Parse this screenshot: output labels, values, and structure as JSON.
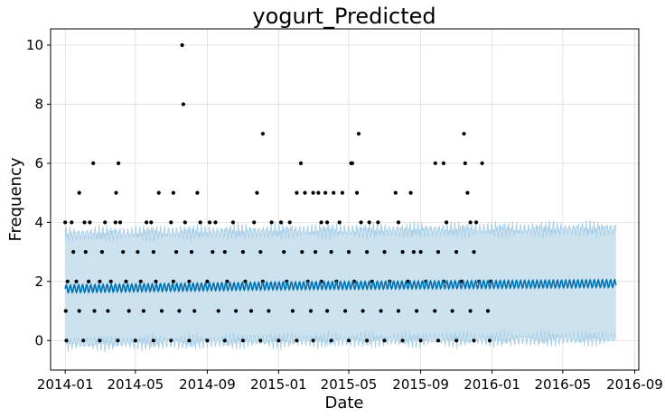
{
  "chart_data": {
    "type": "scatter",
    "title": "yogurt_Predicted",
    "xlabel": "Date",
    "ylabel": "Frequency",
    "xlim": [
      "2013-12-07",
      "2016-09-08"
    ],
    "ylim": [
      -1.0,
      10.55
    ],
    "grid": true,
    "x_ticks": [
      "2014-01",
      "2014-05",
      "2014-09",
      "2015-01",
      "2015-05",
      "2015-09",
      "2016-01",
      "2016-05",
      "2016-09"
    ],
    "y_ticks": [
      0,
      2,
      4,
      6,
      8,
      10
    ],
    "history_range": [
      "2014-01-01",
      "2015-12-31"
    ],
    "forecast_range": [
      "2014-01-01",
      "2016-07-31"
    ],
    "colors": {
      "observed": "#000000",
      "forecast_line": "#0072B2",
      "uncertainty_band": "#CCE2EF",
      "uncertainty_edge": "#A6CDE6",
      "grid": "#dddddd"
    },
    "series": [
      {
        "kind": "observed",
        "points": [
          [
            "2014-07-20",
            10
          ],
          [
            "2014-07-22",
            8
          ],
          [
            "2014-02-18",
            6
          ],
          [
            "2014-04-02",
            6
          ],
          [
            "2014-12-05",
            7
          ],
          [
            "2015-02-08",
            6
          ],
          [
            "2015-05-05",
            6
          ],
          [
            "2015-05-07",
            6
          ],
          [
            "2015-05-18",
            7
          ],
          [
            "2015-09-26",
            6
          ],
          [
            "2015-10-10",
            6
          ],
          [
            "2015-11-14",
            7
          ],
          [
            "2015-11-16",
            6
          ],
          [
            "2015-12-15",
            6
          ],
          [
            "2014-01-25",
            5
          ],
          [
            "2014-03-29",
            5
          ],
          [
            "2014-06-10",
            5
          ],
          [
            "2014-07-05",
            5
          ],
          [
            "2014-08-15",
            5
          ],
          [
            "2014-11-25",
            5
          ],
          [
            "2015-02-01",
            5
          ],
          [
            "2015-02-15",
            5
          ],
          [
            "2015-03-01",
            5
          ],
          [
            "2015-03-10",
            5
          ],
          [
            "2015-03-22",
            5
          ],
          [
            "2015-04-05",
            5
          ],
          [
            "2015-04-20",
            5
          ],
          [
            "2015-05-15",
            5
          ],
          [
            "2015-07-20",
            5
          ],
          [
            "2015-08-15",
            5
          ],
          [
            "2015-11-20",
            5
          ],
          [
            "2014-01-01",
            4
          ],
          [
            "2014-01-12",
            4
          ],
          [
            "2014-02-03",
            4
          ],
          [
            "2014-02-12",
            4
          ],
          [
            "2014-03-10",
            4
          ],
          [
            "2014-03-28",
            4
          ],
          [
            "2014-04-05",
            4
          ],
          [
            "2014-05-20",
            4
          ],
          [
            "2014-05-28",
            4
          ],
          [
            "2014-07-01",
            4
          ],
          [
            "2014-07-25",
            4
          ],
          [
            "2014-08-20",
            4
          ],
          [
            "2014-09-05",
            4
          ],
          [
            "2014-09-15",
            4
          ],
          [
            "2014-10-15",
            4
          ],
          [
            "2014-11-20",
            4
          ],
          [
            "2014-12-20",
            4
          ],
          [
            "2015-01-05",
            4
          ],
          [
            "2015-01-20",
            4
          ],
          [
            "2015-03-15",
            4
          ],
          [
            "2015-03-25",
            4
          ],
          [
            "2015-04-15",
            4
          ],
          [
            "2015-05-22",
            4
          ],
          [
            "2015-06-05",
            4
          ],
          [
            "2015-06-20",
            4
          ],
          [
            "2015-07-25",
            4
          ],
          [
            "2015-10-15",
            4
          ],
          [
            "2015-11-25",
            4
          ],
          [
            "2015-12-05",
            4
          ],
          [
            "2014-01-15",
            3
          ],
          [
            "2014-02-05",
            3
          ],
          [
            "2014-03-05",
            3
          ],
          [
            "2014-04-10",
            3
          ],
          [
            "2014-05-05",
            3
          ],
          [
            "2014-06-01",
            3
          ],
          [
            "2014-07-10",
            3
          ],
          [
            "2014-08-05",
            3
          ],
          [
            "2014-09-10",
            3
          ],
          [
            "2014-10-01",
            3
          ],
          [
            "2014-11-01",
            3
          ],
          [
            "2014-12-01",
            3
          ],
          [
            "2015-01-10",
            3
          ],
          [
            "2015-02-10",
            3
          ],
          [
            "2015-03-05",
            3
          ],
          [
            "2015-04-01",
            3
          ],
          [
            "2015-05-01",
            3
          ],
          [
            "2015-06-01",
            3
          ],
          [
            "2015-07-01",
            3
          ],
          [
            "2015-08-01",
            3
          ],
          [
            "2015-08-20",
            3
          ],
          [
            "2015-09-01",
            3
          ],
          [
            "2015-10-01",
            3
          ],
          [
            "2015-11-01",
            3
          ],
          [
            "2015-12-01",
            3
          ],
          [
            "2014-01-05",
            2
          ],
          [
            "2014-01-20",
            2
          ],
          [
            "2014-02-10",
            2
          ],
          [
            "2014-03-01",
            2
          ],
          [
            "2014-03-20",
            2
          ],
          [
            "2014-04-15",
            2
          ],
          [
            "2014-05-10",
            2
          ],
          [
            "2014-06-05",
            2
          ],
          [
            "2014-07-05",
            2
          ],
          [
            "2014-08-01",
            2
          ],
          [
            "2014-09-01",
            2
          ],
          [
            "2014-10-05",
            2
          ],
          [
            "2014-11-05",
            2
          ],
          [
            "2014-12-05",
            2
          ],
          [
            "2015-01-15",
            2
          ],
          [
            "2015-02-20",
            2
          ],
          [
            "2015-03-15",
            2
          ],
          [
            "2015-04-10",
            2
          ],
          [
            "2015-05-10",
            2
          ],
          [
            "2015-06-10",
            2
          ],
          [
            "2015-07-10",
            2
          ],
          [
            "2015-08-10",
            2
          ],
          [
            "2015-09-10",
            2
          ],
          [
            "2015-10-10",
            2
          ],
          [
            "2015-11-10",
            2
          ],
          [
            "2015-12-10",
            2
          ],
          [
            "2015-12-30",
            2
          ],
          [
            "2014-01-02",
            1
          ],
          [
            "2014-01-25",
            1
          ],
          [
            "2014-02-20",
            1
          ],
          [
            "2014-03-15",
            1
          ],
          [
            "2014-04-20",
            1
          ],
          [
            "2014-05-15",
            1
          ],
          [
            "2014-06-15",
            1
          ],
          [
            "2014-07-15",
            1
          ],
          [
            "2014-08-10",
            1
          ],
          [
            "2014-09-20",
            1
          ],
          [
            "2014-10-20",
            1
          ],
          [
            "2014-11-15",
            1
          ],
          [
            "2014-12-15",
            1
          ],
          [
            "2015-01-25",
            1
          ],
          [
            "2015-02-25",
            1
          ],
          [
            "2015-03-25",
            1
          ],
          [
            "2015-04-25",
            1
          ],
          [
            "2015-05-25",
            1
          ],
          [
            "2015-06-25",
            1
          ],
          [
            "2015-07-25",
            1
          ],
          [
            "2015-08-25",
            1
          ],
          [
            "2015-09-25",
            1
          ],
          [
            "2015-10-25",
            1
          ],
          [
            "2015-11-25",
            1
          ],
          [
            "2015-12-25",
            1
          ],
          [
            "2014-01-03",
            0
          ],
          [
            "2014-02-01",
            0
          ],
          [
            "2014-03-01",
            0
          ],
          [
            "2014-04-01",
            0
          ],
          [
            "2014-05-01",
            0
          ],
          [
            "2014-06-01",
            0
          ],
          [
            "2014-07-01",
            0
          ],
          [
            "2014-08-01",
            0
          ],
          [
            "2014-09-01",
            0
          ],
          [
            "2014-10-01",
            0
          ],
          [
            "2014-11-01",
            0
          ],
          [
            "2014-12-01",
            0
          ],
          [
            "2015-01-01",
            0
          ],
          [
            "2015-02-01",
            0
          ],
          [
            "2015-03-01",
            0
          ],
          [
            "2015-04-01",
            0
          ],
          [
            "2015-05-01",
            0
          ],
          [
            "2015-06-01",
            0
          ],
          [
            "2015-07-01",
            0
          ],
          [
            "2015-08-01",
            0
          ],
          [
            "2015-09-01",
            0
          ],
          [
            "2015-10-01",
            0
          ],
          [
            "2015-11-01",
            0
          ],
          [
            "2015-12-01",
            0
          ],
          [
            "2015-12-28",
            0
          ]
        ]
      },
      {
        "kind": "forecast",
        "trend": [
          [
            "2014-01-01",
            1.75
          ],
          [
            "2015-01-01",
            1.85
          ],
          [
            "2016-01-01",
            1.9
          ],
          [
            "2016-07-31",
            1.93
          ]
        ],
        "weekly_amplitude": 0.13,
        "interval_half_width": 1.85
      }
    ]
  }
}
